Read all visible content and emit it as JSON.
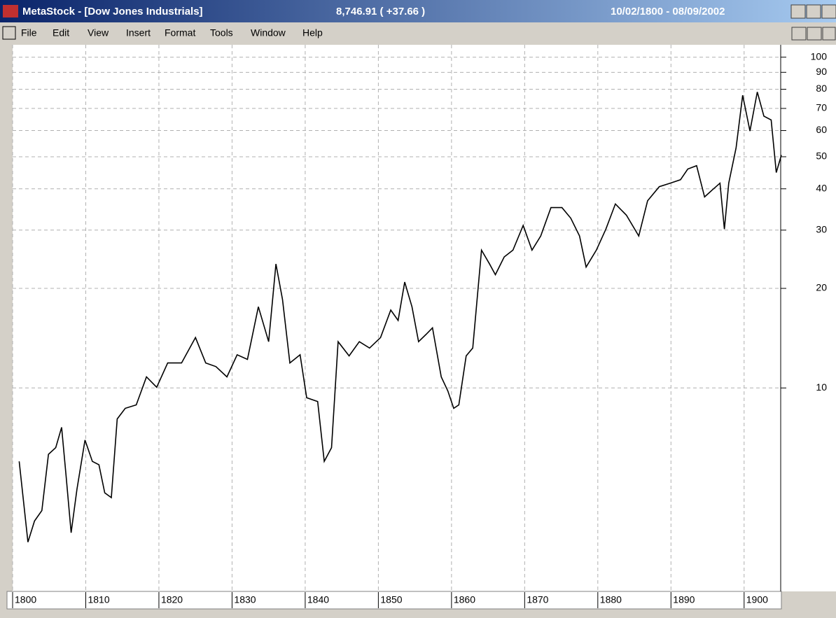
{
  "window": {
    "title": "MetaStock - [Dow Jones Industrials]",
    "quote": "8,746.91 ( +37.66 )",
    "date_range": "10/02/1800 - 08/09/2002"
  },
  "menu": [
    "File",
    "Edit",
    "View",
    "Insert",
    "Format",
    "Tools",
    "Window",
    "Help"
  ],
  "chart_data": {
    "type": "line",
    "log_scale": true,
    "grid": true,
    "color": "#000000",
    "x": [
      1800.9,
      1802.1,
      1803.0,
      1804.0,
      1804.9,
      1805.9,
      1806.7,
      1807.3,
      1808.0,
      1808.8,
      1809.9,
      1810.9,
      1811.8,
      1812.6,
      1813.5,
      1814.3,
      1815.4,
      1816.9,
      1818.3,
      1819.7,
      1821.2,
      1823.1,
      1825.0,
      1826.4,
      1827.8,
      1829.3,
      1830.7,
      1832.1,
      1833.6,
      1835.0,
      1836.0,
      1836.9,
      1837.9,
      1839.3,
      1840.2,
      1841.7,
      1842.6,
      1843.6,
      1844.5,
      1846.0,
      1847.4,
      1848.8,
      1850.3,
      1851.7,
      1852.7,
      1853.6,
      1854.6,
      1855.5,
      1856.5,
      1857.4,
      1858.6,
      1859.5,
      1860.3,
      1861.0,
      1862.0,
      1862.9,
      1864.1,
      1865.2,
      1866.0,
      1867.2,
      1868.4,
      1869.8,
      1871.0,
      1872.2,
      1873.6,
      1875.1,
      1876.3,
      1877.5,
      1878.4,
      1879.8,
      1881.1,
      1882.4,
      1883.9,
      1885.6,
      1886.8,
      1888.4,
      1889.9,
      1891.3,
      1892.3,
      1893.5,
      1894.6,
      1895.6,
      1896.7,
      1897.3,
      1897.9,
      1898.9,
      1899.8,
      1900.8,
      1901.8,
      1902.7,
      1903.7,
      1904.4,
      1905.1
    ],
    "values": [
      6.0,
      3.42,
      3.96,
      4.26,
      6.3,
      6.6,
      7.6,
      5.45,
      3.65,
      4.94,
      6.96,
      6.0,
      5.86,
      4.82,
      4.66,
      8.06,
      8.68,
      8.89,
      10.8,
      10.05,
      11.9,
      11.9,
      14.2,
      11.9,
      11.6,
      10.8,
      12.6,
      12.2,
      17.6,
      13.8,
      23.7,
      18.5,
      11.9,
      12.6,
      9.34,
      9.1,
      6.0,
      6.6,
      13.8,
      12.5,
      13.8,
      13.2,
      14.2,
      17.2,
      16.0,
      20.9,
      17.6,
      13.8,
      14.5,
      15.2,
      10.8,
      9.8,
      8.68,
      8.89,
      12.5,
      13.2,
      26.1,
      23.7,
      22.0,
      24.9,
      26.1,
      31.0,
      26.1,
      28.8,
      35.1,
      35.1,
      32.6,
      28.8,
      23.2,
      26.1,
      30.2,
      36.0,
      33.3,
      28.8,
      36.8,
      40.6,
      41.6,
      42.6,
      45.9,
      47.0,
      37.8,
      39.6,
      41.6,
      30.2,
      41.6,
      53.2,
      76.7,
      59.8,
      78.5,
      66.3,
      64.6,
      44.8,
      50.6
    ],
    "xlim": [
      1800,
      1905
    ],
    "xticks": [
      1800,
      1810,
      1820,
      1830,
      1840,
      1850,
      1860,
      1870,
      1880,
      1890,
      1900
    ],
    "ylim": [
      2.45,
      109
    ],
    "yticks": [
      100,
      90,
      80,
      70,
      60,
      50,
      40,
      30,
      20,
      10
    ]
  }
}
